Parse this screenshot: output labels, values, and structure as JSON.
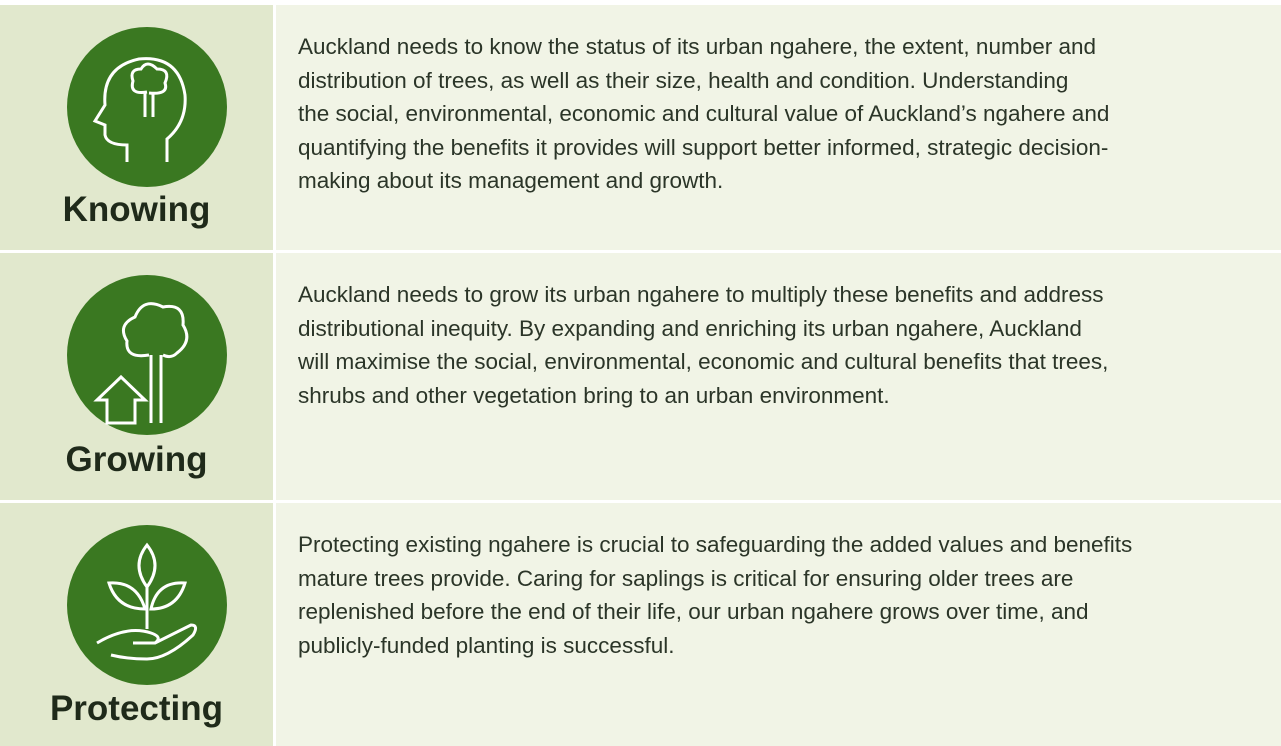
{
  "rows": [
    {
      "label": "Knowing",
      "lines": [
        "Auckland needs to know the status of its urban ngahere, the extent, number and",
        "distribution of trees, as well as their size, health and condition. Understanding",
        "the social, environmental, economic and cultural value of Auckland’s ngahere and",
        "quantifying the benefits it provides will support better informed, strategic decision-",
        "making about its management and growth."
      ]
    },
    {
      "label": "Growing",
      "lines": [
        "Auckland needs to grow its urban ngahere  to multiply these benefits and address",
        "distributional inequity. By expanding and enriching its urban ngahere, Auckland",
        "will maximise the social, environmental, economic and cultural benefits that trees,",
        "shrubs and other vegetation bring to an urban environment."
      ]
    },
    {
      "label": "Protecting",
      "lines": [
        "Protecting existing ngahere is crucial to safeguarding the added values and benefits",
        "mature trees provide. Caring for saplings is critical for ensuring older trees are",
        "replenished before the end of their life, our urban ngahere grows over time, and",
        "publicly-funded planting is successful."
      ]
    }
  ]
}
